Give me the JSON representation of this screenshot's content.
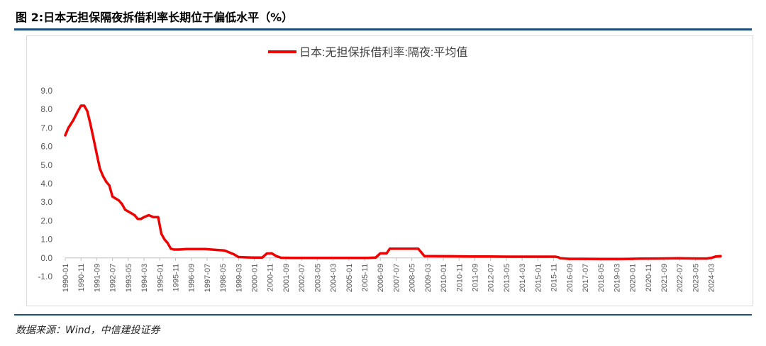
{
  "figure": {
    "title": "图 2:日本无担保隔夜拆借利率长期位于偏低水平（%）",
    "source": "数据来源：Wind，中信建投证券"
  },
  "colors": {
    "series": "#ee0000",
    "rule": "#1f4e79",
    "axis": "#bfbfbf",
    "tick_text": "#595959"
  },
  "chart_data": {
    "type": "line",
    "title": "",
    "xlabel": "",
    "ylabel": "",
    "ylim": [
      -1.0,
      9.0
    ],
    "yticks": [
      -1.0,
      0.0,
      1.0,
      2.0,
      3.0,
      4.0,
      5.0,
      6.0,
      7.0,
      8.0,
      9.0
    ],
    "ytick_labels": [
      "-1.0",
      "0.0",
      "1.0",
      "2.0",
      "3.0",
      "4.0",
      "5.0",
      "6.0",
      "7.0",
      "8.0",
      "9.0"
    ],
    "xtick_labels": [
      "1990-01",
      "1990-11",
      "1991-09",
      "1992-07",
      "1993-05",
      "1994-03",
      "1995-01",
      "1995-11",
      "1996-09",
      "1997-07",
      "1998-05",
      "1999-03",
      "2000-01",
      "2000-11",
      "2001-09",
      "2002-07",
      "2003-05",
      "2004-03",
      "2005-01",
      "2005-11",
      "2006-09",
      "2007-07",
      "2008-05",
      "2009-03",
      "2010-01",
      "2010-11",
      "2011-09",
      "2012-07",
      "2013-05",
      "2014-03",
      "2015-01",
      "2015-11",
      "2016-09",
      "2017-07",
      "2018-05",
      "2019-03",
      "2020-01",
      "2020-11",
      "2021-09",
      "2022-07",
      "2023-05",
      "2024-03"
    ],
    "grid": false,
    "legend_position": "top-center",
    "series": [
      {
        "name": "日本:无担保拆借利率:隔夜:平均值",
        "x": [
          "1990-01",
          "1990-03",
          "1990-06",
          "1990-09",
          "1990-11",
          "1991-01",
          "1991-03",
          "1991-05",
          "1991-07",
          "1991-09",
          "1991-11",
          "1992-01",
          "1992-03",
          "1992-05",
          "1992-07",
          "1992-09",
          "1992-11",
          "1993-01",
          "1993-03",
          "1993-05",
          "1993-07",
          "1993-09",
          "1993-11",
          "1994-01",
          "1994-03",
          "1994-06",
          "1994-09",
          "1994-12",
          "1995-02",
          "1995-04",
          "1995-06",
          "1995-08",
          "1995-10",
          "1996-01",
          "1996-06",
          "1997-01",
          "1997-06",
          "1998-01",
          "1998-06",
          "1998-09",
          "1998-12",
          "1999-03",
          "1999-08",
          "2000-01",
          "2000-06",
          "2000-09",
          "2000-12",
          "2001-03",
          "2001-06",
          "2002-01",
          "2003-01",
          "2004-01",
          "2005-01",
          "2006-01",
          "2006-06",
          "2006-09",
          "2007-01",
          "2007-03",
          "2007-10",
          "2008-03",
          "2008-09",
          "2008-11",
          "2009-01",
          "2009-06",
          "2010-06",
          "2011-06",
          "2012-06",
          "2013-06",
          "2014-06",
          "2015-06",
          "2015-12",
          "2016-02",
          "2016-03",
          "2016-09",
          "2017-06",
          "2018-06",
          "2019-06",
          "2020-06",
          "2021-06",
          "2022-06",
          "2023-06",
          "2023-12",
          "2024-03",
          "2024-06",
          "2024-09"
        ],
        "values": [
          6.6,
          7.0,
          7.4,
          7.9,
          8.2,
          8.2,
          7.9,
          7.2,
          6.4,
          5.6,
          4.8,
          4.4,
          4.1,
          3.9,
          3.3,
          3.2,
          3.1,
          2.9,
          2.6,
          2.5,
          2.4,
          2.3,
          2.1,
          2.1,
          2.2,
          2.3,
          2.2,
          2.2,
          1.3,
          1.0,
          0.8,
          0.5,
          0.45,
          0.45,
          0.48,
          0.48,
          0.48,
          0.43,
          0.4,
          0.3,
          0.2,
          0.05,
          0.03,
          0.02,
          0.02,
          0.24,
          0.25,
          0.1,
          0.01,
          0.0,
          0.0,
          0.0,
          0.0,
          0.0,
          0.02,
          0.25,
          0.25,
          0.5,
          0.5,
          0.5,
          0.5,
          0.3,
          0.1,
          0.1,
          0.09,
          0.08,
          0.08,
          0.07,
          0.07,
          0.07,
          0.07,
          0.04,
          -0.01,
          -0.05,
          -0.05,
          -0.06,
          -0.06,
          -0.04,
          -0.03,
          -0.02,
          -0.03,
          -0.03,
          0.0,
          0.08,
          0.1
        ]
      }
    ]
  }
}
